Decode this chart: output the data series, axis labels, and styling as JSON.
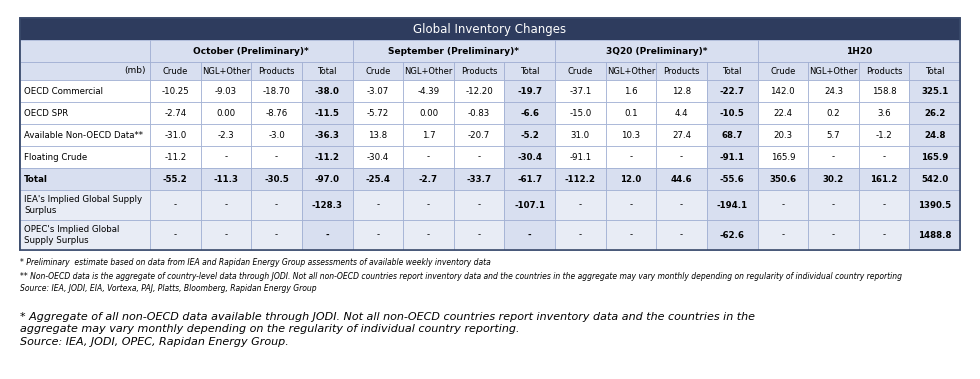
{
  "title": "Global Inventory Changes",
  "footnote1": "* Preliminary  estimate based on data from IEA and Rapidan Energy Group assessments of available weekly inventory data",
  "footnote2": "** Non-OECD data is the aggregate of country-level data through JODI. Not all non-OECD countries report inventory data and the countries in the aggregate may vary monthly depending on regularity of individual country reporting",
  "footnote3": "Source: IEA, JODI, EIA, Vortexa, PAJ, Platts, Bloomberg, Rapidan Energy Group",
  "bottom_note": "* Aggregate of all non-OECD data available through JODI. Not all non-OECD countries report inventory data and the countries in the\naggregate may vary monthly depending on the regularity of individual country reporting.\nSource: IEA, JODI, OPEC, Rapidan Energy Group.",
  "unit": "(mb)",
  "col_groups": [
    {
      "label": "October (Preliminary)*"
    },
    {
      "label": "September (Preliminary)*"
    },
    {
      "label": "3Q20 (Preliminary)*"
    },
    {
      "label": "1H20"
    }
  ],
  "sub_labels": [
    "Crude",
    "NGL+Other",
    "Products",
    "Total"
  ],
  "rows": [
    {
      "label": "OECD Commercial",
      "values": [
        "-10.25",
        "-9.03",
        "-18.70",
        "-38.0",
        "-3.07",
        "-4.39",
        "-12.20",
        "-19.7",
        "-37.1",
        "1.6",
        "12.8",
        "-22.7",
        "142.0",
        "24.3",
        "158.8",
        "325.1"
      ],
      "is_total": false,
      "is_implied": false,
      "multiline": false
    },
    {
      "label": "OECD SPR",
      "values": [
        "-2.74",
        "0.00",
        "-8.76",
        "-11.5",
        "-5.72",
        "0.00",
        "-0.83",
        "-6.6",
        "-15.0",
        "0.1",
        "4.4",
        "-10.5",
        "22.4",
        "0.2",
        "3.6",
        "26.2"
      ],
      "is_total": false,
      "is_implied": false,
      "multiline": false
    },
    {
      "label": "Available Non-OECD Data**",
      "values": [
        "-31.0",
        "-2.3",
        "-3.0",
        "-36.3",
        "13.8",
        "1.7",
        "-20.7",
        "-5.2",
        "31.0",
        "10.3",
        "27.4",
        "68.7",
        "20.3",
        "5.7",
        "-1.2",
        "24.8"
      ],
      "is_total": false,
      "is_implied": false,
      "multiline": false
    },
    {
      "label": "Floating Crude",
      "values": [
        "-11.2",
        "-",
        "-",
        "-11.2",
        "-30.4",
        "-",
        "-",
        "-30.4",
        "-91.1",
        "-",
        "-",
        "-91.1",
        "165.9",
        "-",
        "-",
        "165.9"
      ],
      "is_total": false,
      "is_implied": false,
      "multiline": false
    },
    {
      "label": "Total",
      "values": [
        "-55.2",
        "-11.3",
        "-30.5",
        "-97.0",
        "-25.4",
        "-2.7",
        "-33.7",
        "-61.7",
        "-112.2",
        "12.0",
        "44.6",
        "-55.6",
        "350.6",
        "30.2",
        "161.2",
        "542.0"
      ],
      "is_total": true,
      "is_implied": false,
      "multiline": false
    },
    {
      "label": "IEA's Implied Global Supply\nSurplus",
      "values": [
        "-",
        "-",
        "-",
        "-128.3",
        "-",
        "-",
        "-",
        "-107.1",
        "-",
        "-",
        "-",
        "-194.1",
        "-",
        "-",
        "-",
        "1390.5"
      ],
      "is_total": false,
      "is_implied": true,
      "multiline": true
    },
    {
      "label": "OPEC's Implied Global\nSupply Surplus",
      "values": [
        "-",
        "-",
        "-",
        "-",
        "-",
        "-",
        "-",
        "-",
        "-",
        "-",
        "-",
        "-62.6",
        "-",
        "-",
        "-",
        "1488.8"
      ],
      "is_total": false,
      "is_implied": true,
      "multiline": true
    }
  ],
  "header_bg": "#2e3c5e",
  "header_fg": "#ffffff",
  "subheader_bg": "#d8dff0",
  "subheader_fg": "#000000",
  "white_bg": "#ffffff",
  "total_row_bg": "#d8dff0",
  "implied_bg": "#e8ecf5",
  "total_col_bg": "#d8dff0",
  "border_dark": "#3a4a6b",
  "border_light": "#9aaad0"
}
